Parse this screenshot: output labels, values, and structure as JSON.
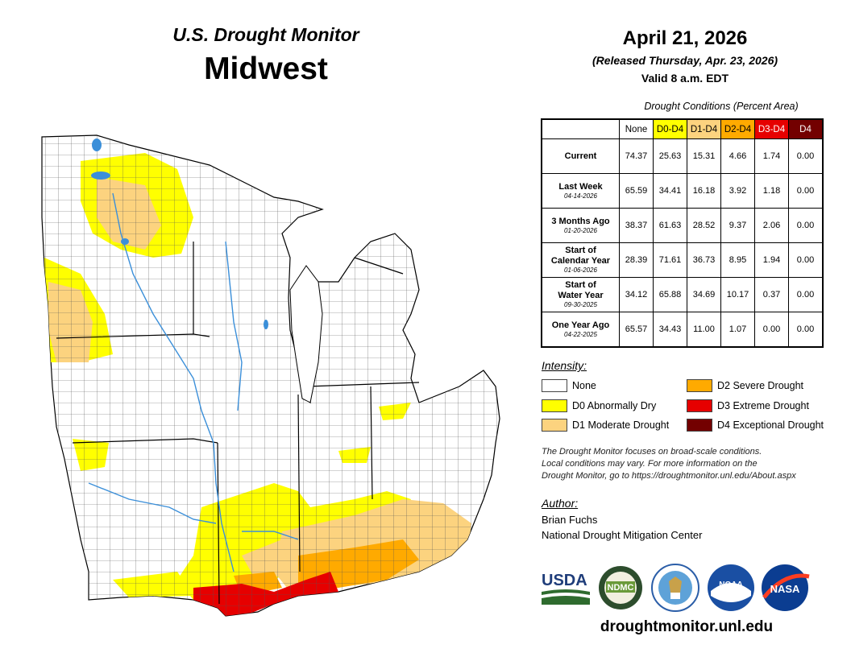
{
  "header": {
    "product": "U.S. Drought Monitor",
    "region": "Midwest",
    "date": "April 21, 2026",
    "released": "(Released Thursday, Apr. 23, 2026)",
    "valid": "Valid 8 a.m. EDT"
  },
  "table": {
    "caption": "Drought Conditions (Percent Area)",
    "columns": [
      "None",
      "D0-D4",
      "D1-D4",
      "D2-D4",
      "D3-D4",
      "D4"
    ],
    "column_colors": [
      "#ffffff",
      "#ffff00",
      "#fcd37f",
      "#ffaa00",
      "#e60000",
      "#730000"
    ],
    "rows": [
      {
        "label": "Current",
        "label2": "",
        "date": "",
        "values": [
          "74.37",
          "25.63",
          "15.31",
          "4.66",
          "1.74",
          "0.00"
        ]
      },
      {
        "label": "Last Week",
        "label2": "",
        "date": "04-14-2026",
        "values": [
          "65.59",
          "34.41",
          "16.18",
          "3.92",
          "1.18",
          "0.00"
        ]
      },
      {
        "label": "3 Months Ago",
        "label2": "",
        "date": "01-20-2026",
        "values": [
          "38.37",
          "61.63",
          "28.52",
          "9.37",
          "2.06",
          "0.00"
        ]
      },
      {
        "label": "Start of",
        "label2": "Calendar Year",
        "date": "01-06-2026",
        "values": [
          "28.39",
          "71.61",
          "36.73",
          "8.95",
          "1.94",
          "0.00"
        ]
      },
      {
        "label": "Start of",
        "label2": "Water Year",
        "date": "09-30-2025",
        "values": [
          "34.12",
          "65.88",
          "34.69",
          "10.17",
          "0.37",
          "0.00"
        ]
      },
      {
        "label": "One Year Ago",
        "label2": "",
        "date": "04-22-2025",
        "values": [
          "65.57",
          "34.43",
          "11.00",
          "1.07",
          "0.00",
          "0.00"
        ]
      }
    ]
  },
  "legend": {
    "title": "Intensity:",
    "items": [
      {
        "label": "None",
        "color": "#ffffff"
      },
      {
        "label": "D0 Abnormally Dry",
        "color": "#ffff00"
      },
      {
        "label": "D1 Moderate Drought",
        "color": "#fcd37f"
      },
      {
        "label": "D2 Severe Drought",
        "color": "#ffaa00"
      },
      {
        "label": "D3 Extreme Drought",
        "color": "#e60000"
      },
      {
        "label": "D4 Exceptional Drought",
        "color": "#730000"
      }
    ]
  },
  "footnote": [
    "The Drought Monitor focuses on broad-scale conditions.",
    "Local conditions may vary. For more information on the",
    "Drought Monitor, go to https://droughtmonitor.unl.edu/About.aspx"
  ],
  "author": {
    "title": "Author:",
    "name": "Brian Fuchs",
    "org": "National Drought Mitigation Center"
  },
  "logos": {
    "usda": "USDA",
    "ndmc": "NDMC",
    "noaa": "NOAA",
    "nasa": "NASA",
    "seal": "department-of-commerce-seal"
  },
  "site_url": "droughtmonitor.unl.edu"
}
